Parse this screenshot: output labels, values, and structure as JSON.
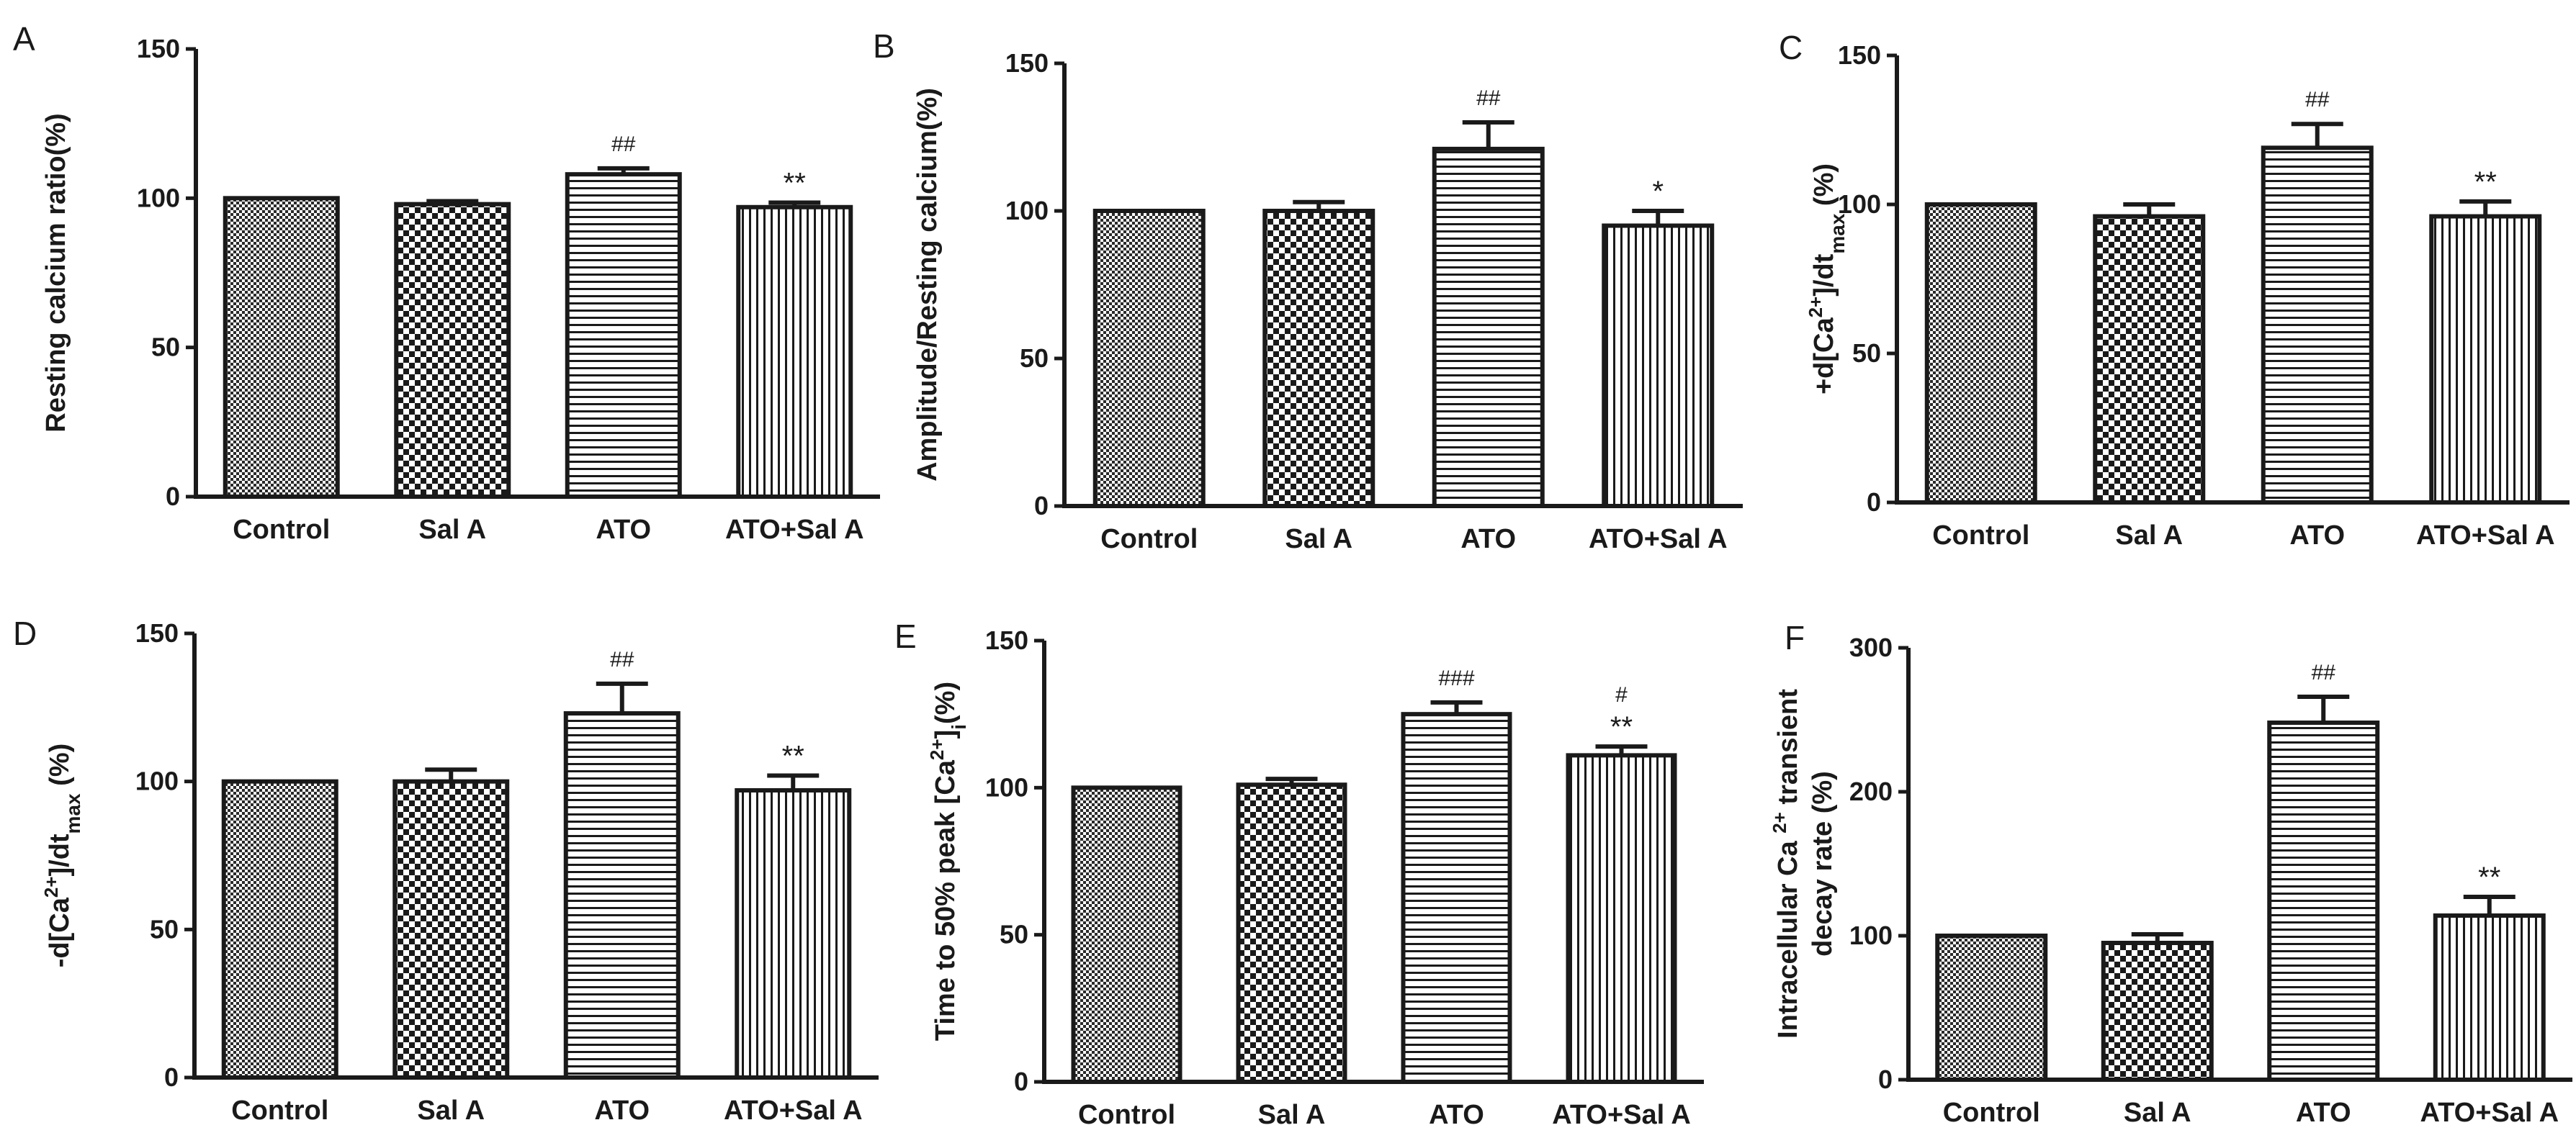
{
  "chart_data": [
    {
      "type": "bar",
      "panel": "A",
      "ylabel": "Resting calcium ratio(%)",
      "categories": [
        "Control",
        "Sal A",
        "ATO",
        "ATO+Sal A"
      ],
      "values": [
        100,
        98,
        108,
        97
      ],
      "errors": [
        0,
        1,
        2,
        1.5
      ],
      "annotations": [
        "",
        "",
        "##",
        "**"
      ],
      "ylim": [
        0,
        150
      ],
      "yticks": [
        0,
        50,
        100,
        150
      ]
    },
    {
      "type": "bar",
      "panel": "B",
      "ylabel": "Amplitude/Resting calcium(%)",
      "categories": [
        "Control",
        "Sal A",
        "ATO",
        "ATO+Sal A"
      ],
      "values": [
        100,
        100,
        121,
        95
      ],
      "errors": [
        0,
        3,
        9,
        5
      ],
      "annotations": [
        "",
        "",
        "##",
        "*"
      ],
      "ylim": [
        0,
        150
      ],
      "yticks": [
        0,
        50,
        100,
        150
      ]
    },
    {
      "type": "bar",
      "panel": "C",
      "ylabel": "+d[Ca2+]/dtmax (%)",
      "ylabel_parts": [
        "+d[Ca",
        "2+",
        "]/dt",
        "max",
        "  (%)"
      ],
      "categories": [
        "Control",
        "Sal A",
        "ATO",
        "ATO+Sal A"
      ],
      "values": [
        100,
        96,
        119,
        96
      ],
      "errors": [
        0,
        4,
        8,
        5
      ],
      "annotations": [
        "",
        "",
        "##",
        "**"
      ],
      "ylim": [
        0,
        150
      ],
      "yticks": [
        0,
        50,
        100,
        150
      ]
    },
    {
      "type": "bar",
      "panel": "D",
      "ylabel": "-d[Ca2+]/dtmax (%)",
      "ylabel_parts": [
        "-d[Ca",
        "2+",
        "]/dt",
        "max",
        "  (%)"
      ],
      "categories": [
        "Control",
        "Sal A",
        "ATO",
        "ATO+Sal A"
      ],
      "values": [
        100,
        100,
        123,
        97
      ],
      "errors": [
        0,
        4,
        10,
        5
      ],
      "annotations": [
        "",
        "",
        "##",
        "**"
      ],
      "ylim": [
        0,
        150
      ],
      "yticks": [
        0,
        50,
        100,
        150
      ]
    },
    {
      "type": "bar",
      "panel": "E",
      "ylabel": "Time to 50% peak [Ca2+]i(%)",
      "ylabel_parts": [
        "Time to 50% peak [Ca",
        "2+",
        "]",
        "i",
        "(%)"
      ],
      "categories": [
        "Control",
        "Sal A",
        "ATO",
        "ATO+Sal A"
      ],
      "values": [
        100,
        101,
        125,
        111
      ],
      "errors": [
        0,
        2,
        4,
        3
      ],
      "annotations": [
        "",
        "",
        "###",
        "#\n**"
      ],
      "ylim": [
        0,
        150
      ],
      "yticks": [
        0,
        50,
        100,
        150
      ]
    },
    {
      "type": "bar",
      "panel": "F",
      "ylabel": "Intracellular Ca 2+ transient decay rate (%)",
      "ylabel_lines": [
        [
          "Intracellular Ca ",
          "2+",
          " transient"
        ],
        [
          "decay rate (%)"
        ]
      ],
      "categories": [
        "Control",
        "Sal A",
        "ATO",
        "ATO+Sal A"
      ],
      "values": [
        100,
        95,
        248,
        114
      ],
      "errors": [
        0,
        6,
        18,
        13
      ],
      "annotations": [
        "",
        "",
        "##",
        "**"
      ],
      "ylim": [
        0,
        300
      ],
      "yticks": [
        0,
        100,
        200,
        300
      ]
    }
  ],
  "colors": {
    "ink": "#1a1a1a",
    "background": "#ffffff"
  },
  "patterns": [
    "fine-checker",
    "coarse-checker",
    "horizontal-stripes",
    "vertical-stripes"
  ]
}
